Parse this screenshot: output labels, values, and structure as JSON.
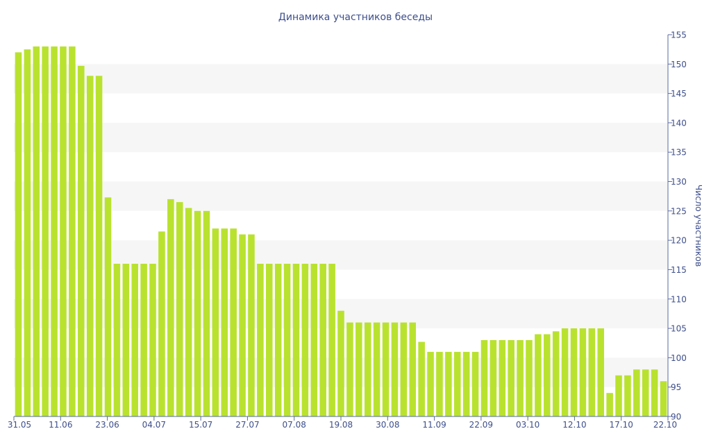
{
  "chart_data": {
    "type": "bar",
    "title": "Динамика участников беседы",
    "xlabel": "",
    "ylabel": "Число участников",
    "ylim": [
      90,
      155
    ],
    "y_ticks": [
      90,
      95,
      100,
      105,
      110,
      115,
      120,
      125,
      130,
      135,
      140,
      145,
      150,
      155
    ],
    "y_axis_position": "right",
    "x_tick_labels": [
      "31.05",
      "11.06",
      "23.06",
      "04.07",
      "15.07",
      "27.07",
      "07.08",
      "19.08",
      "30.08",
      "11.09",
      "22.09",
      "03.10",
      "12.10",
      "17.10",
      "22.10"
    ],
    "grid": "alternating horizontal bands",
    "legend": "none",
    "values": [
      152,
      152.5,
      153,
      153,
      153,
      153,
      153,
      149.7,
      148,
      148,
      127.3,
      116,
      116,
      116,
      116,
      116,
      121.5,
      127,
      126.5,
      125.5,
      125,
      125,
      122,
      122,
      122,
      121,
      121,
      116,
      116,
      116,
      116,
      116,
      116,
      116,
      116,
      116,
      108,
      106,
      106,
      106,
      106,
      106,
      106,
      106,
      106,
      102.7,
      101,
      101,
      101,
      101,
      101,
      101,
      103,
      103,
      103,
      103,
      103,
      103,
      104,
      104,
      104.5,
      105,
      105,
      105,
      105,
      105,
      94,
      97,
      97,
      98,
      98,
      98,
      96
    ],
    "colors": {
      "bar": "#b9e22f",
      "text": "#3d4e8b",
      "axis": "#5a6aa0",
      "band": "#f6f6f6"
    }
  }
}
